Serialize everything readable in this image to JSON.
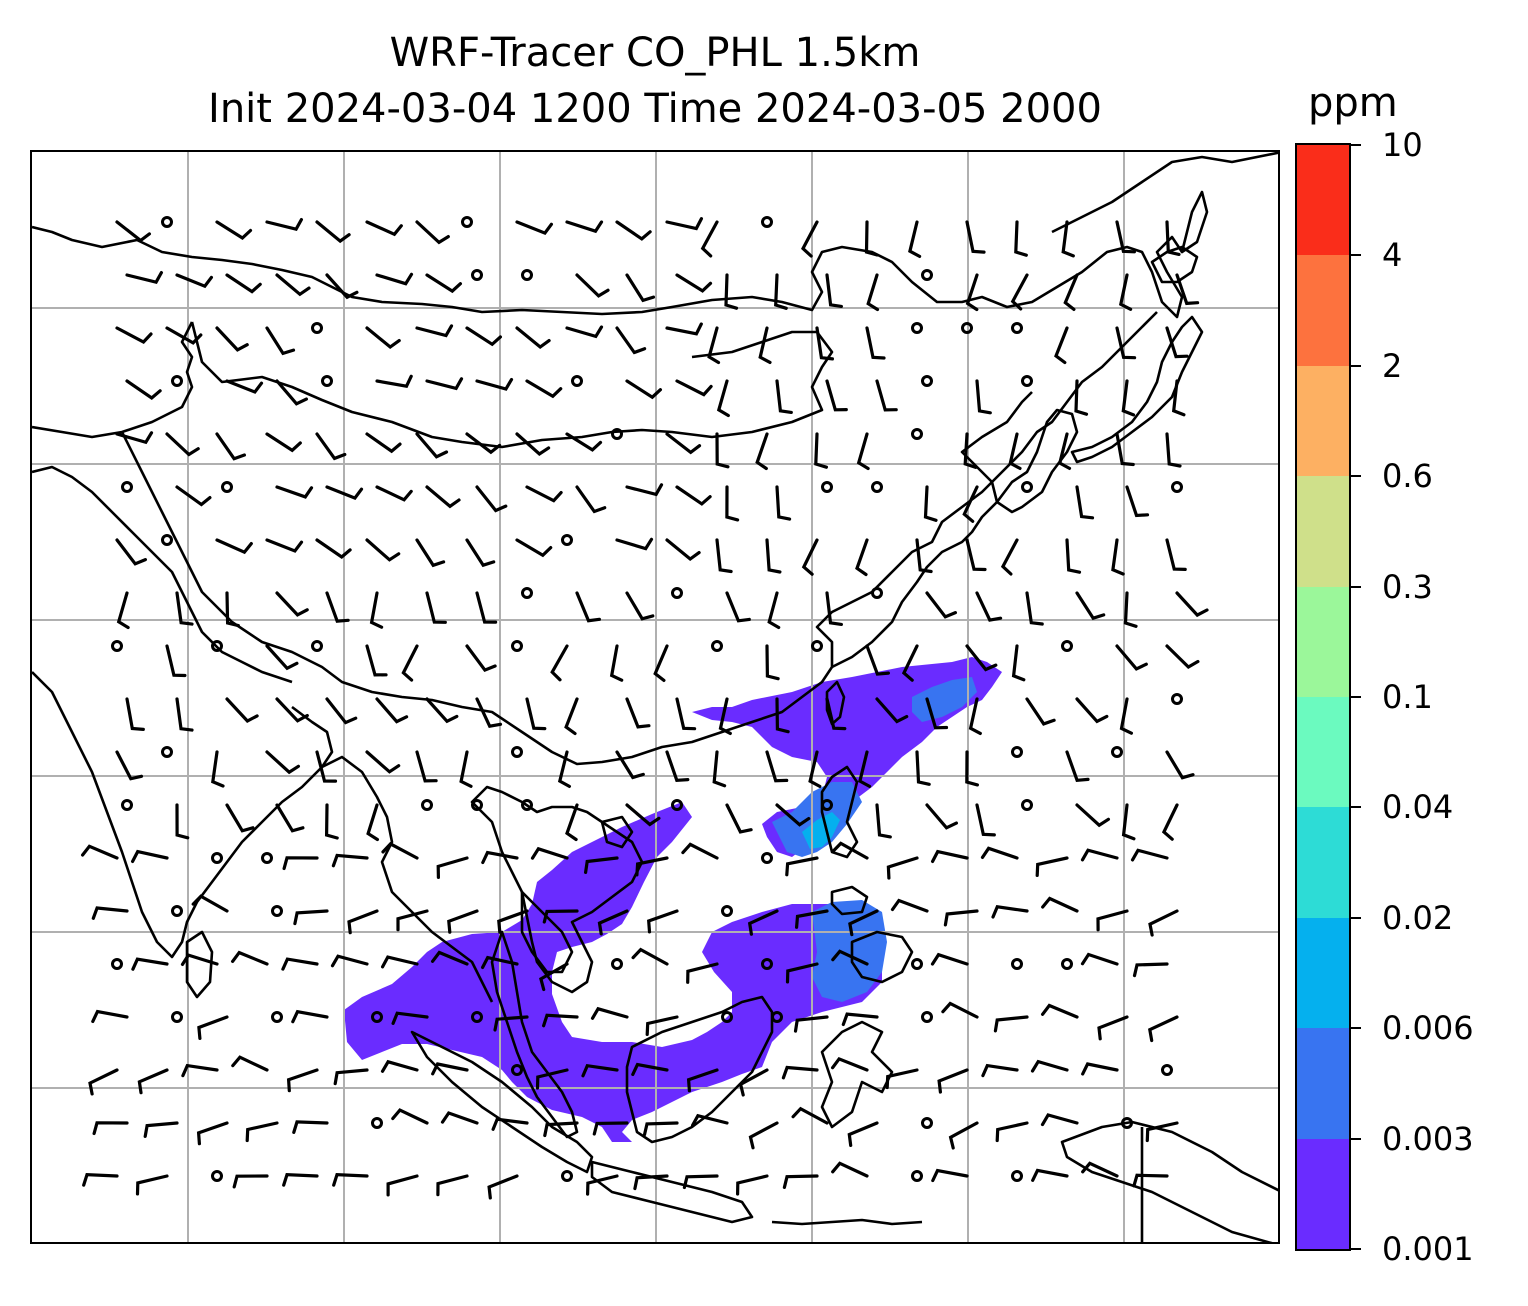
{
  "title": {
    "line1": "WRF-Tracer CO_PHL 1.5km",
    "line2": "Init 2024-03-04 1200 Time 2024-03-05 2000"
  },
  "colorbar": {
    "unit": "ppm",
    "levels": [
      {
        "label": "0.001",
        "color": "#6a2cff"
      },
      {
        "label": "0.003",
        "color": "#3874f1"
      },
      {
        "label": "0.006",
        "color": "#05b0ee"
      },
      {
        "label": "0.02",
        "color": "#2ddcd6"
      },
      {
        "label": "0.04",
        "color": "#6bfabf"
      },
      {
        "label": "0.1",
        "color": "#9bf79a"
      },
      {
        "label": "0.3",
        "color": "#cfe08a"
      },
      {
        "label": "0.6",
        "color": "#fdb062"
      },
      {
        "label": "2",
        "color": "#fd723e"
      },
      {
        "label": "4",
        "color": "#fa2d1a"
      },
      {
        "label": "10",
        "color": ""
      }
    ]
  },
  "map": {
    "projection_gridlines": true,
    "wind_barbs": true,
    "tracer_colors": {
      "low": "#6a2cff",
      "mid": "#3874f1",
      "high": "#05b0ee",
      "peak": "#2ddcd6"
    }
  }
}
